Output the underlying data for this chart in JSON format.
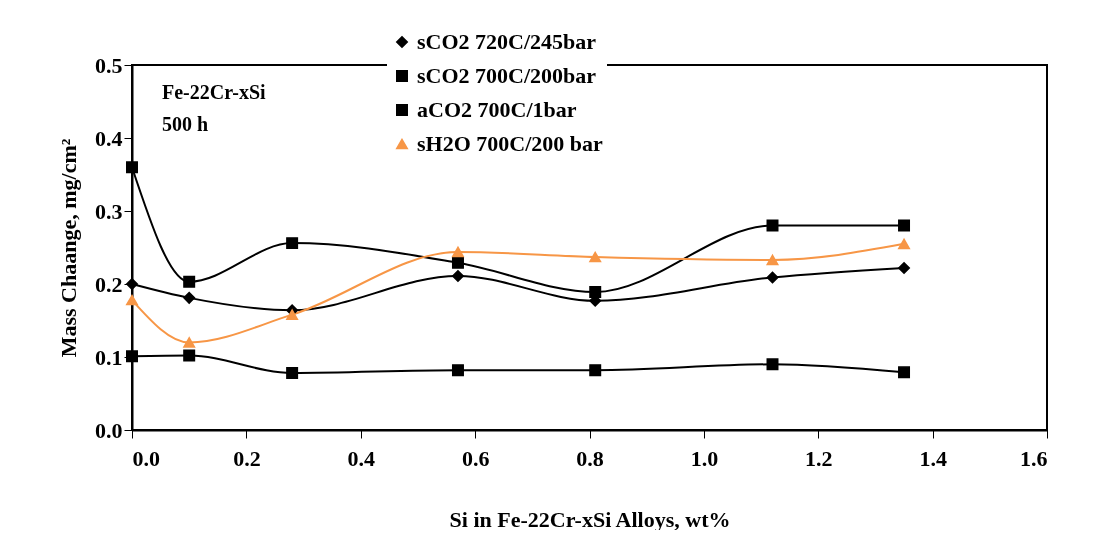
{
  "chart_data": {
    "type": "line",
    "xlabel": "Si in Fe-22Cr-xSi Alloys, wt%",
    "ylabel": "Mass Chaange, mg/cm²",
    "annotations": [
      "Fe-22Cr-xSi",
      "500 h"
    ],
    "x": [
      0,
      0.1,
      0.28,
      0.57,
      0.81,
      1.12,
      1.35
    ],
    "series": [
      {
        "name": "sCO2 720C/245bar",
        "color": "#000000",
        "marker": "diamond",
        "values": [
          0.2,
          0.181,
          0.164,
          0.211,
          0.177,
          0.209,
          0.222
        ]
      },
      {
        "name": "sCO2 700C/200bar",
        "color": "#000000",
        "marker": "square",
        "values": [
          0.101,
          0.102,
          0.078,
          0.082,
          0.082,
          0.09,
          0.079
        ]
      },
      {
        "name": "aCO2 700C/1bar",
        "color": "#000000",
        "marker": "square",
        "values": [
          0.36,
          0.203,
          0.256,
          0.229,
          0.189,
          0.28,
          0.28
        ]
      },
      {
        "name": "sH2O 700C/200 bar",
        "color": "#f79646",
        "marker": "triangle",
        "values": [
          0.178,
          0.12,
          0.158,
          0.244,
          0.237,
          0.233,
          0.255
        ]
      }
    ],
    "xlim": [
      0,
      1.6
    ],
    "xticks": [
      {
        "value": 0,
        "label": "0.0"
      },
      {
        "value": 0.2,
        "label": "0.2"
      },
      {
        "value": 0.4,
        "label": "0.4"
      },
      {
        "value": 0.6,
        "label": "0.6"
      },
      {
        "value": 0.8,
        "label": "0.8"
      },
      {
        "value": 1,
        "label": "1.0"
      },
      {
        "value": 1.2,
        "label": "1.2"
      },
      {
        "value": 1.4,
        "label": "1.4"
      },
      {
        "value": 1.6,
        "label": "1.6"
      }
    ],
    "ylim": [
      0,
      0.5
    ],
    "yticks": [
      {
        "value": 0,
        "label": "0.0"
      },
      {
        "value": 0.1,
        "label": "0.1"
      },
      {
        "value": 0.2,
        "label": "0.2"
      },
      {
        "value": 0.3,
        "label": "0.3"
      },
      {
        "value": 0.4,
        "label": "0.4"
      },
      {
        "value": 0.5,
        "label": "0.5"
      }
    ],
    "grid": false,
    "legend": "top",
    "line_style": "solid"
  }
}
